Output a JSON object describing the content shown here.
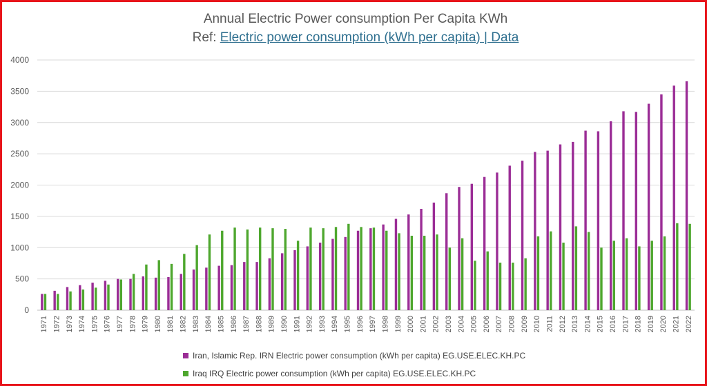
{
  "chart_data": {
    "type": "bar",
    "title": "Annual Electric Power consumption Per Capita KWh",
    "ref_prefix": "Ref: ",
    "ref_link_text": "Electric power consumption (kWh per capita) | Data",
    "categories": [
      "1971",
      "1972",
      "1973",
      "1974",
      "1975",
      "1976",
      "1977",
      "1978",
      "1979",
      "1980",
      "1981",
      "1982",
      "1983",
      "1984",
      "1985",
      "1986",
      "1987",
      "1988",
      "1989",
      "1990",
      "1991",
      "1992",
      "1993",
      "1994",
      "1995",
      "1996",
      "1997",
      "1998",
      "1999",
      "2000",
      "2001",
      "2002",
      "2003",
      "2004",
      "2005",
      "2006",
      "2007",
      "2008",
      "2009",
      "2010",
      "2011",
      "2012",
      "2013",
      "2014",
      "2015",
      "2016",
      "2017",
      "2018",
      "2019",
      "2020",
      "2021",
      "2022"
    ],
    "series": [
      {
        "name": "Iran, Islamic Rep. IRN Electric power consumption (kWh per capita) EG.USE.ELEC.KH.PC",
        "color": "#9b2d96",
        "values": [
          260,
          310,
          370,
          400,
          440,
          470,
          500,
          500,
          540,
          520,
          530,
          580,
          650,
          680,
          710,
          720,
          770,
          770,
          830,
          910,
          960,
          1020,
          1080,
          1140,
          1170,
          1270,
          1310,
          1370,
          1460,
          1530,
          1620,
          1720,
          1870,
          1970,
          2020,
          2130,
          2200,
          2310,
          2390,
          2530,
          2550,
          2650,
          2690,
          2870,
          2860,
          3020,
          3180,
          3170,
          3300,
          3450,
          3590,
          3660
        ]
      },
      {
        "name": "Iraq IRQ Electric power consumption (kWh per capita) EG.USE.ELEC.KH.PC",
        "color": "#4ea72e",
        "values": [
          260,
          260,
          300,
          330,
          360,
          410,
          490,
          580,
          730,
          800,
          740,
          900,
          1040,
          1210,
          1270,
          1320,
          1290,
          1320,
          1310,
          1300,
          1110,
          1320,
          1310,
          1330,
          1380,
          1330,
          1320,
          1270,
          1230,
          1190,
          1190,
          1210,
          1000,
          1150,
          790,
          940,
          760,
          760,
          830,
          1180,
          1260,
          1080,
          1340,
          1250,
          1000,
          1110,
          1150,
          1020,
          1110,
          1180,
          1390,
          1380
        ]
      }
    ],
    "y_ticks": [
      "0",
      "500",
      "1000",
      "1500",
      "2000",
      "2500",
      "3000",
      "3500",
      "4000"
    ],
    "ylim": [
      0,
      4000
    ],
    "grid": true,
    "legend_position": "bottom"
  }
}
